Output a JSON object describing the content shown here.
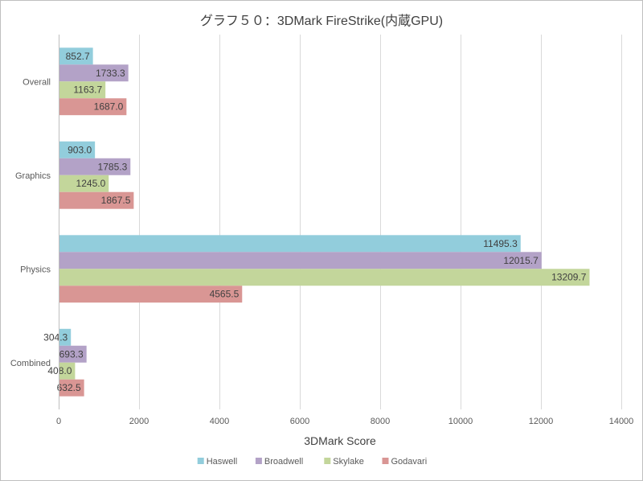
{
  "chart_data": {
    "type": "bar",
    "orientation": "horizontal",
    "title": "グラフ５０：3DMark FireStrike(内蔵GPU)",
    "xlabel": "3DMark Score",
    "ylabel": "",
    "categories": [
      "Overall",
      "Graphics",
      "Physics",
      "Combined"
    ],
    "series": [
      {
        "name": "Haswell",
        "color": "#92cddc",
        "values": [
          852.7,
          903.0,
          11495.3,
          304.3
        ]
      },
      {
        "name": "Broadwell",
        "color": "#b3a2c7",
        "values": [
          1733.3,
          1785.3,
          12015.7,
          693.3
        ]
      },
      {
        "name": "Skylake",
        "color": "#c3d69b",
        "values": [
          1163.7,
          1245.0,
          13209.7,
          408.0
        ]
      },
      {
        "name": "Godavari",
        "color": "#d99694",
        "values": [
          1687.0,
          1867.5,
          4565.5,
          632.5
        ]
      }
    ],
    "value_labels": [
      [
        "852.7",
        "903.0",
        "11495.3",
        "304.3"
      ],
      [
        "1733.3",
        "1785.3",
        "12015.7",
        "693.3"
      ],
      [
        "1163.7",
        "1245.0",
        "13209.7",
        "408.0"
      ],
      [
        "1687.0",
        "1867.5",
        "4565.5",
        "632.5"
      ]
    ],
    "xlim": [
      0,
      14000
    ],
    "x_ticks": [
      0,
      2000,
      4000,
      6000,
      8000,
      10000,
      12000,
      14000
    ],
    "x_tick_labels": [
      "0",
      "2000",
      "4000",
      "6000",
      "8000",
      "10000",
      "12000",
      "14000"
    ],
    "grid": "vertical",
    "legend_position": "bottom"
  }
}
